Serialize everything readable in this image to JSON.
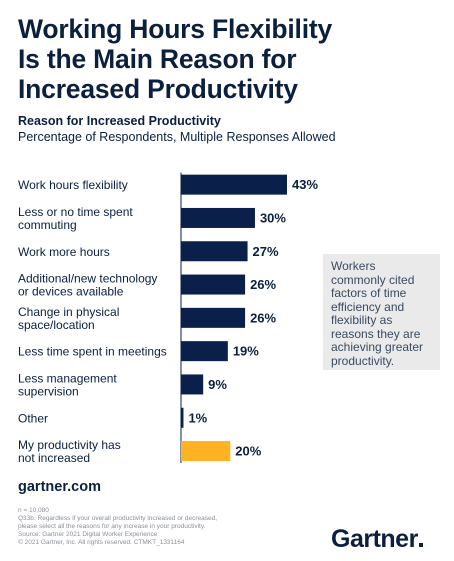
{
  "header": {
    "title_lines": [
      "Working Hours Flexibility",
      "Is the Main Reason for",
      "Increased Productivity"
    ]
  },
  "chart_data": {
    "type": "bar",
    "orientation": "horizontal",
    "title": "Reason for Increased Productivity",
    "subtitle": "Percentage of Respondents, Multiple Responses Allowed",
    "unit": "%",
    "categories": [
      [
        "Work hours flexibility"
      ],
      [
        "Less or no time spent",
        "commuting"
      ],
      [
        "Work more hours"
      ],
      [
        "Additional/new technology",
        "or devices available"
      ],
      [
        "Change in physical",
        "space/location"
      ],
      [
        "Less time spent in meetings"
      ],
      [
        "Less management",
        "supervision"
      ],
      [
        "Other"
      ],
      [
        "My productivity has",
        "not increased"
      ]
    ],
    "values": [
      43,
      30,
      27,
      26,
      26,
      19,
      9,
      1,
      20
    ],
    "value_labels": [
      "43%",
      "30%",
      "27%",
      "26%",
      "26%",
      "19%",
      "9%",
      "1%",
      "20%"
    ],
    "highlight_index": 8,
    "colors": {
      "bar": "#0b1f4b",
      "highlight": "#ffb222",
      "axis": "#0b1f4b"
    },
    "xlim": [
      0,
      43
    ]
  },
  "callout": {
    "lines": [
      "Workers",
      "commonly cited",
      "factors of time",
      "efficiency and",
      "flexibility as",
      "reasons they are",
      "achieving greater",
      "productivity."
    ]
  },
  "footer": {
    "website": "gartner.com",
    "notes": [
      "n = 10,080",
      "Q33b. Regardless if your overall productivity increased or decreased,",
      "please select all the reasons for any increase in your productivity.",
      "Source: Gartner 2021 Digital Worker Experience",
      "© 2021 Gartner, Inc. All rights reserved. CTMKT_1331164"
    ],
    "logo": "Gartner"
  }
}
